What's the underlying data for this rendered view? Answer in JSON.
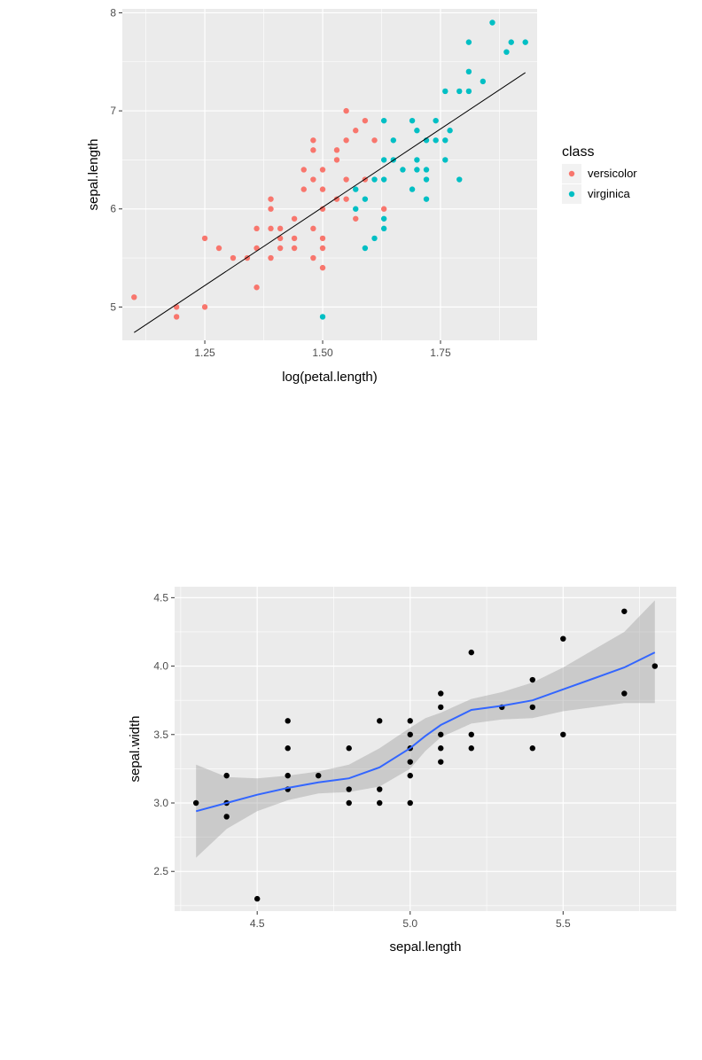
{
  "chart_data": [
    {
      "type": "scatter",
      "title": "",
      "xlabel": "log(petal.length)",
      "ylabel": "sepal.length",
      "xlim": [
        1.075,
        1.955
      ],
      "ylim": [
        4.66,
        8.04
      ],
      "xticks": [
        1.25,
        1.5,
        1.75
      ],
      "xtick_labels": [
        "1.25",
        "1.50",
        "1.75"
      ],
      "yticks": [
        5,
        6,
        7,
        8
      ],
      "ytick_labels": [
        "5",
        "6",
        "7",
        "8"
      ],
      "grid": true,
      "legend": {
        "title": "class",
        "position": "right"
      },
      "fit_line": {
        "type": "linear",
        "color": "#000000",
        "x": [
          1.1,
          1.93
        ],
        "y": [
          4.74,
          7.39
        ]
      },
      "series": [
        {
          "name": "versicolor",
          "color": "#F8766D",
          "points": [
            [
              1.1,
              5.1
            ],
            [
              1.19,
              5.0
            ],
            [
              1.19,
              4.9
            ],
            [
              1.25,
              5.7
            ],
            [
              1.25,
              5.0
            ],
            [
              1.28,
              5.6
            ],
            [
              1.31,
              5.5
            ],
            [
              1.34,
              5.5
            ],
            [
              1.36,
              5.2
            ],
            [
              1.36,
              5.6
            ],
            [
              1.36,
              5.8
            ],
            [
              1.39,
              5.5
            ],
            [
              1.39,
              5.8
            ],
            [
              1.39,
              6.0
            ],
            [
              1.39,
              6.1
            ],
            [
              1.41,
              5.7
            ],
            [
              1.41,
              5.6
            ],
            [
              1.41,
              5.8
            ],
            [
              1.44,
              5.6
            ],
            [
              1.44,
              5.7
            ],
            [
              1.44,
              5.9
            ],
            [
              1.46,
              6.2
            ],
            [
              1.46,
              6.4
            ],
            [
              1.48,
              5.5
            ],
            [
              1.48,
              5.8
            ],
            [
              1.48,
              6.3
            ],
            [
              1.48,
              6.6
            ],
            [
              1.48,
              6.7
            ],
            [
              1.5,
              5.4
            ],
            [
              1.5,
              5.6
            ],
            [
              1.5,
              5.7
            ],
            [
              1.5,
              6.0
            ],
            [
              1.5,
              6.2
            ],
            [
              1.5,
              6.4
            ],
            [
              1.53,
              6.1
            ],
            [
              1.53,
              6.5
            ],
            [
              1.53,
              6.6
            ],
            [
              1.55,
              6.1
            ],
            [
              1.55,
              6.3
            ],
            [
              1.55,
              6.7
            ],
            [
              1.55,
              7.0
            ],
            [
              1.57,
              5.9
            ],
            [
              1.57,
              6.8
            ],
            [
              1.59,
              6.3
            ],
            [
              1.59,
              6.9
            ],
            [
              1.61,
              6.7
            ],
            [
              1.63,
              6.0
            ]
          ]
        },
        {
          "name": "virginica",
          "color": "#00BFC4",
          "points": [
            [
              1.5,
              4.9
            ],
            [
              1.57,
              6.0
            ],
            [
              1.57,
              6.2
            ],
            [
              1.59,
              5.6
            ],
            [
              1.59,
              6.1
            ],
            [
              1.61,
              5.7
            ],
            [
              1.61,
              6.3
            ],
            [
              1.63,
              5.8
            ],
            [
              1.63,
              5.9
            ],
            [
              1.63,
              6.3
            ],
            [
              1.63,
              6.5
            ],
            [
              1.63,
              6.9
            ],
            [
              1.65,
              6.5
            ],
            [
              1.65,
              6.7
            ],
            [
              1.67,
              6.4
            ],
            [
              1.69,
              6.2
            ],
            [
              1.69,
              6.9
            ],
            [
              1.7,
              6.4
            ],
            [
              1.7,
              6.5
            ],
            [
              1.7,
              6.8
            ],
            [
              1.72,
              6.1
            ],
            [
              1.72,
              6.3
            ],
            [
              1.72,
              6.4
            ],
            [
              1.72,
              6.7
            ],
            [
              1.74,
              6.7
            ],
            [
              1.74,
              6.9
            ],
            [
              1.76,
              6.5
            ],
            [
              1.76,
              6.7
            ],
            [
              1.76,
              7.2
            ],
            [
              1.77,
              6.8
            ],
            [
              1.79,
              6.3
            ],
            [
              1.79,
              7.2
            ],
            [
              1.81,
              7.2
            ],
            [
              1.81,
              7.4
            ],
            [
              1.81,
              7.7
            ],
            [
              1.84,
              7.3
            ],
            [
              1.86,
              7.9
            ],
            [
              1.89,
              7.6
            ],
            [
              1.9,
              7.7
            ],
            [
              1.93,
              7.7
            ]
          ]
        }
      ]
    },
    {
      "type": "scatter",
      "title": "",
      "xlabel": "sepal.length",
      "ylabel": "sepal.width",
      "xlim": [
        4.23,
        5.87
      ],
      "ylim": [
        2.21,
        4.58
      ],
      "xticks": [
        4.5,
        5.0,
        5.5
      ],
      "xtick_labels": [
        "4.5",
        "5.0",
        "5.5"
      ],
      "yticks": [
        2.5,
        3.0,
        3.5,
        4.0,
        4.5
      ],
      "ytick_labels": [
        "2.5",
        "3.0",
        "3.5",
        "4.0",
        "4.5"
      ],
      "grid": true,
      "point_color": "#000000",
      "points": [
        [
          4.3,
          3.0
        ],
        [
          4.4,
          2.9
        ],
        [
          4.4,
          3.0
        ],
        [
          4.4,
          3.2
        ],
        [
          4.5,
          2.3
        ],
        [
          4.6,
          3.1
        ],
        [
          4.6,
          3.2
        ],
        [
          4.6,
          3.4
        ],
        [
          4.6,
          3.6
        ],
        [
          4.7,
          3.2
        ],
        [
          4.8,
          3.0
        ],
        [
          4.8,
          3.1
        ],
        [
          4.8,
          3.4
        ],
        [
          4.9,
          3.0
        ],
        [
          4.9,
          3.1
        ],
        [
          4.9,
          3.6
        ],
        [
          5.0,
          3.0
        ],
        [
          5.0,
          3.2
        ],
        [
          5.0,
          3.3
        ],
        [
          5.0,
          3.4
        ],
        [
          5.0,
          3.5
        ],
        [
          5.0,
          3.6
        ],
        [
          5.1,
          3.3
        ],
        [
          5.1,
          3.4
        ],
        [
          5.1,
          3.5
        ],
        [
          5.1,
          3.7
        ],
        [
          5.1,
          3.8
        ],
        [
          5.2,
          3.4
        ],
        [
          5.2,
          3.5
        ],
        [
          5.2,
          4.1
        ],
        [
          5.3,
          3.7
        ],
        [
          5.4,
          3.4
        ],
        [
          5.4,
          3.7
        ],
        [
          5.4,
          3.9
        ],
        [
          5.5,
          3.5
        ],
        [
          5.5,
          4.2
        ],
        [
          5.7,
          3.8
        ],
        [
          5.7,
          4.4
        ],
        [
          5.8,
          4.0
        ]
      ],
      "smooth": {
        "method": "loess",
        "color": "#3366FF",
        "band_color": "#999999",
        "x": [
          4.3,
          4.4,
          4.5,
          4.6,
          4.7,
          4.8,
          4.9,
          5.0,
          5.05,
          5.1,
          5.2,
          5.3,
          5.4,
          5.5,
          5.6,
          5.7,
          5.8
        ],
        "y": [
          2.94,
          3.0,
          3.06,
          3.11,
          3.15,
          3.18,
          3.26,
          3.4,
          3.49,
          3.57,
          3.68,
          3.71,
          3.75,
          3.83,
          3.91,
          3.99,
          4.1
        ],
        "lower": [
          2.6,
          2.81,
          2.94,
          3.02,
          3.07,
          3.08,
          3.12,
          3.25,
          3.38,
          3.48,
          3.58,
          3.61,
          3.62,
          3.67,
          3.7,
          3.73,
          3.73
        ],
        "upper": [
          3.28,
          3.19,
          3.18,
          3.2,
          3.23,
          3.28,
          3.4,
          3.55,
          3.62,
          3.66,
          3.76,
          3.81,
          3.88,
          3.99,
          4.12,
          4.25,
          4.48
        ]
      }
    }
  ]
}
